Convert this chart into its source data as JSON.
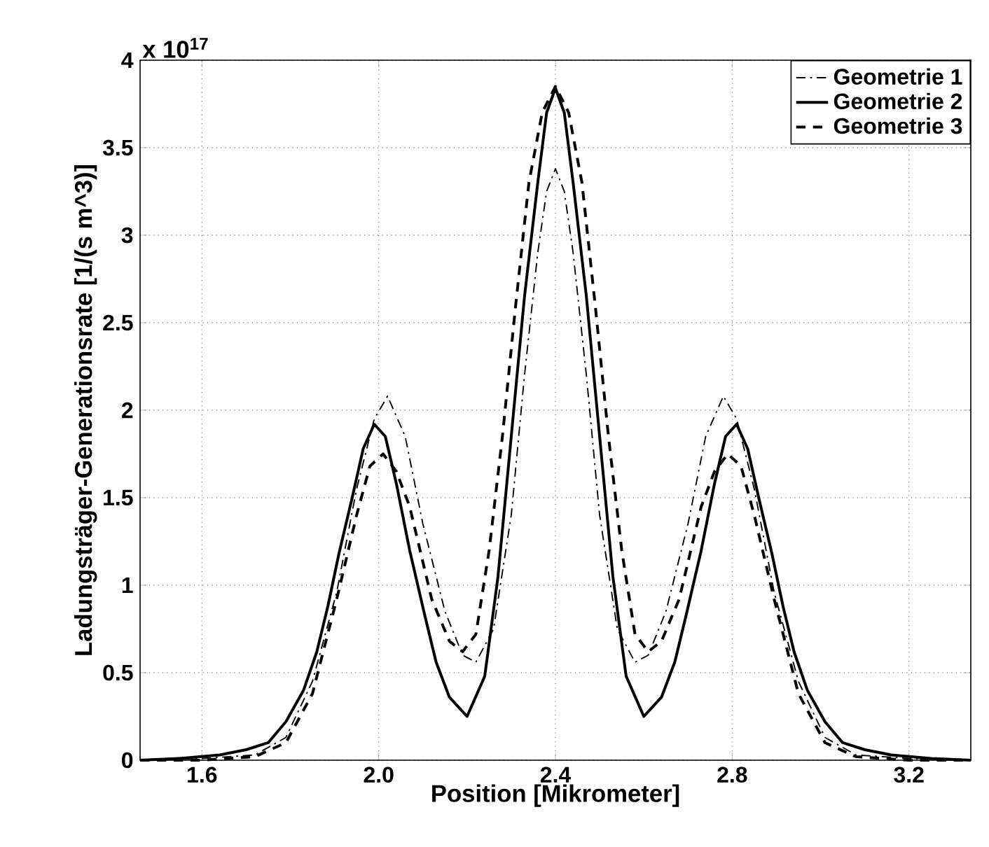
{
  "chart_data": {
    "type": "line",
    "xlabel": "Position [Mikrometer]",
    "ylabel": "Ladungsträger-Generationsrate [1/(s m^3)]",
    "annotations": [
      "x 10$^{17}$"
    ],
    "xlim": [
      1.46,
      3.34
    ],
    "ylim": [
      0,
      4
    ],
    "xticks": [
      1.6,
      {
        "value": 2.0,
        "label": "2.0"
      },
      2.4,
      2.8,
      3.2
    ],
    "yticks": [
      0,
      0.5,
      1,
      1.5,
      2,
      2.5,
      3,
      3.5,
      4
    ],
    "grid": true,
    "legend": "top right",
    "series": [
      {
        "name": "Geometrie 1",
        "color": "#000000",
        "line_style": "dashdot",
        "x": [
          1.46,
          1.6,
          1.72,
          1.79,
          1.85,
          1.905,
          1.95,
          1.99,
          2.02,
          2.06,
          2.1,
          2.15,
          2.19,
          2.22,
          2.26,
          2.3,
          2.33,
          2.36,
          2.38,
          2.4,
          2.42,
          2.44,
          2.47,
          2.5,
          2.54,
          2.58,
          2.61,
          2.65,
          2.7,
          2.74,
          2.78,
          2.81,
          2.85,
          2.895,
          2.95,
          3.01,
          3.08,
          3.2,
          3.34
        ],
        "values": [
          0,
          0.01,
          0.03,
          0.13,
          0.45,
          0.96,
          1.55,
          1.95,
          2.08,
          1.85,
          1.35,
          0.85,
          0.6,
          0.56,
          0.75,
          1.4,
          2.2,
          2.9,
          3.25,
          3.38,
          3.25,
          2.9,
          2.2,
          1.4,
          0.75,
          0.56,
          0.6,
          0.85,
          1.35,
          1.85,
          2.08,
          1.95,
          1.55,
          0.96,
          0.45,
          0.13,
          0.03,
          0.01,
          0
        ]
      },
      {
        "name": "Geometrie 2",
        "color": "#000000",
        "line_style": "solid",
        "x": [
          1.46,
          1.55,
          1.64,
          1.7,
          1.75,
          1.79,
          1.83,
          1.86,
          1.885,
          1.91,
          1.94,
          1.965,
          1.99,
          2.015,
          2.04,
          2.07,
          2.105,
          2.13,
          2.16,
          2.2,
          2.24,
          2.27,
          2.3,
          2.33,
          2.36,
          2.38,
          2.4,
          2.42,
          2.44,
          2.47,
          2.5,
          2.53,
          2.56,
          2.6,
          2.64,
          2.67,
          2.695,
          2.73,
          2.76,
          2.785,
          2.81,
          2.835,
          2.86,
          2.89,
          2.915,
          2.94,
          2.97,
          3.01,
          3.05,
          3.1,
          3.16,
          3.25,
          3.34
        ],
        "values": [
          0,
          0.01,
          0.03,
          0.06,
          0.1,
          0.22,
          0.4,
          0.62,
          0.88,
          1.18,
          1.5,
          1.78,
          1.92,
          1.85,
          1.58,
          1.2,
          0.82,
          0.56,
          0.36,
          0.25,
          0.48,
          1.05,
          1.85,
          2.65,
          3.3,
          3.7,
          3.84,
          3.7,
          3.3,
          2.65,
          1.85,
          1.05,
          0.48,
          0.25,
          0.36,
          0.56,
          0.82,
          1.2,
          1.58,
          1.85,
          1.92,
          1.78,
          1.5,
          1.18,
          0.88,
          0.62,
          0.4,
          0.22,
          0.1,
          0.06,
          0.03,
          0.01,
          0
        ]
      },
      {
        "name": "Geometrie 3",
        "color": "#000000",
        "line_style": "dashed",
        "x": [
          1.46,
          1.6,
          1.72,
          1.79,
          1.85,
          1.905,
          1.95,
          1.98,
          2.01,
          2.04,
          2.07,
          2.12,
          2.16,
          2.19,
          2.22,
          2.25,
          2.28,
          2.31,
          2.34,
          2.37,
          2.4,
          2.43,
          2.46,
          2.49,
          2.52,
          2.55,
          2.58,
          2.61,
          2.64,
          2.68,
          2.73,
          2.76,
          2.79,
          2.82,
          2.85,
          2.895,
          2.95,
          3.01,
          3.08,
          3.2,
          3.34
        ],
        "values": [
          0,
          0.0,
          0.02,
          0.1,
          0.38,
          0.92,
          1.4,
          1.68,
          1.75,
          1.65,
          1.45,
          0.92,
          0.68,
          0.62,
          0.72,
          1.2,
          1.85,
          2.6,
          3.3,
          3.7,
          3.85,
          3.7,
          3.3,
          2.6,
          1.85,
          1.2,
          0.72,
          0.62,
          0.68,
          0.92,
          1.45,
          1.65,
          1.75,
          1.68,
          1.4,
          0.92,
          0.38,
          0.1,
          0.02,
          0.0,
          0
        ]
      }
    ]
  }
}
